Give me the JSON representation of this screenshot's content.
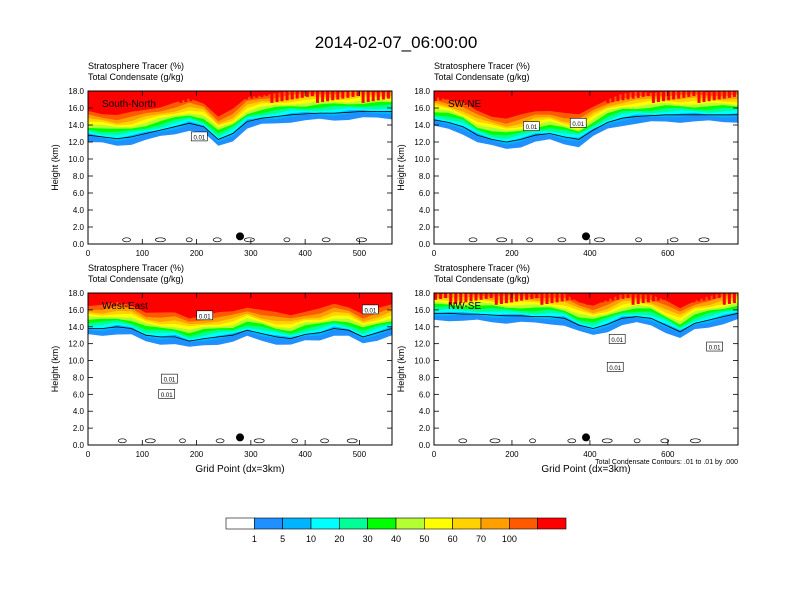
{
  "chart_data": {
    "type": "heatmap",
    "title": "2014-02-07_06:00:00",
    "colorbar": {
      "labels": [
        "1",
        "5",
        "10",
        "20",
        "30",
        "40",
        "50",
        "60",
        "70",
        "100"
      ],
      "colors": [
        "#ffffff",
        "#1e90ff",
        "#00b4ff",
        "#00ffff",
        "#00ff96",
        "#00ff00",
        "#b4ff32",
        "#ffff00",
        "#ffd200",
        "#ffa000",
        "#ff5a00",
        "#ff0000"
      ]
    },
    "panels": [
      {
        "label": "South-North",
        "line1": "Stratosphere Tracer   (%)",
        "line2": "Total Condensate   (g/kg)",
        "xmax": 560,
        "xticks": [
          "0",
          "100",
          "200",
          "300",
          "400",
          "500"
        ],
        "xtick_values": [
          0,
          100,
          200,
          300,
          400,
          500
        ],
        "dot_x": 280,
        "contour_labels": [
          {
            "text": "0.01",
            "x": 205,
            "y": 12.6
          }
        ],
        "tracer_base_km": [
          12.0,
          11.8,
          11.6,
          11.8,
          12.2,
          12.6,
          13.0,
          13.4,
          13.0,
          11.5,
          12.2,
          13.6,
          14.0,
          14.2,
          14.4,
          14.5,
          14.6,
          14.6,
          14.7,
          14.8,
          14.8,
          14.8
        ],
        "xlabel": "",
        "ylabel": "Height (km)"
      },
      {
        "label": "SW-NE",
        "line1": "Stratosphere Tracer   (%)",
        "line2": "Total Condensate   (g/kg)",
        "xmax": 780,
        "xticks": [
          "0",
          "200",
          "400",
          "600"
        ],
        "xtick_values": [
          0,
          200,
          400,
          600
        ],
        "dot_x": 390,
        "contour_labels": [
          {
            "text": "0.01",
            "x": 250,
            "y": 13.8
          },
          {
            "text": "0.01",
            "x": 370,
            "y": 14.2
          }
        ],
        "tracer_base_km": [
          13.8,
          13.5,
          13.0,
          12.0,
          11.5,
          11.2,
          11.5,
          12.0,
          12.2,
          11.8,
          11.5,
          12.6,
          13.5,
          14.0,
          14.2,
          14.3,
          14.4,
          14.4,
          14.4,
          14.4,
          14.4,
          14.4
        ],
        "xlabel": "",
        "ylabel": "Height (km)"
      },
      {
        "label": "West-East",
        "line1": "Stratosphere Tracer   (%)",
        "line2": "Total Condensate   (g/kg)",
        "xmax": 560,
        "xticks": [
          "0",
          "100",
          "200",
          "300",
          "400",
          "500"
        ],
        "xtick_values": [
          0,
          100,
          200,
          300,
          400,
          500
        ],
        "dot_x": 280,
        "contour_labels": [
          {
            "text": "0.01",
            "x": 215,
            "y": 15.3
          },
          {
            "text": "0.01",
            "x": 150,
            "y": 7.8
          },
          {
            "text": "0.01",
            "x": 145,
            "y": 6.0
          },
          {
            "text": "0.01",
            "x": 520,
            "y": 16.0
          }
        ],
        "tracer_base_km": [
          13.0,
          13.0,
          13.2,
          13.0,
          12.2,
          12.0,
          12.0,
          11.5,
          11.8,
          12.0,
          12.2,
          12.8,
          12.4,
          12.0,
          11.8,
          12.3,
          12.5,
          13.0,
          12.8,
          12.0,
          12.5,
          13.0
        ],
        "xlabel": "Grid Point (dx=3km)",
        "ylabel": "Height (km)"
      },
      {
        "label": "NW-SE",
        "line1": "Stratosphere Tracer   (%)",
        "line2": "Total Condensate   (g/kg)",
        "xmax": 780,
        "xticks": [
          "0",
          "200",
          "400",
          "600"
        ],
        "xtick_values": [
          0,
          200,
          400,
          600
        ],
        "dot_x": 390,
        "contour_labels": [
          {
            "text": "0.01",
            "x": 470,
            "y": 12.5
          },
          {
            "text": "0.01",
            "x": 465,
            "y": 9.2
          },
          {
            "text": "0.01",
            "x": 720,
            "y": 11.6
          }
        ],
        "tracer_base_km": [
          14.8,
          14.8,
          14.7,
          14.7,
          14.6,
          14.5,
          14.5,
          14.4,
          14.4,
          14.2,
          13.4,
          13.0,
          13.5,
          14.2,
          14.4,
          14.2,
          13.4,
          12.6,
          13.6,
          14.0,
          14.4,
          14.8
        ],
        "xlabel": "Grid Point (dx=3km)",
        "ylabel": "Height (km)",
        "footnote": "Total Condensate Contours: .01 to .01 by .000"
      }
    ],
    "ylim": [
      0,
      18
    ],
    "yticks": [
      "0.0",
      "2.0",
      "4.0",
      "6.0",
      "8.0",
      "10.0",
      "12.0",
      "14.0",
      "16.0",
      "18.0"
    ],
    "ytick_values": [
      0,
      2,
      4,
      6,
      8,
      10,
      12,
      14,
      16,
      18
    ]
  }
}
